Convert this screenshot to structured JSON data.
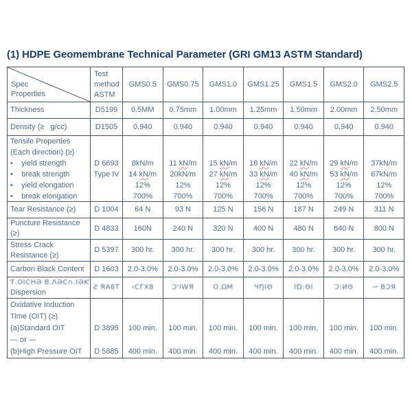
{
  "page": {
    "title": "(1) HDPE Geomembrane Technical Parameter (GRI GM13 ASTM Standard)"
  },
  "colors": {
    "title": "#1a3a5f",
    "table_text": "#4e6a84",
    "table_border": "#46586c",
    "spellcheck_underline": "#e08484",
    "background": "#ffffff"
  },
  "table": {
    "header": {
      "spec_label": "Spec",
      "properties_label": "Properties",
      "method_lines": [
        "Test",
        "method",
        "ASTM"
      ],
      "columns": [
        "GMS0.5",
        "GMS0.75",
        "GMS1.0",
        "GMS1.25",
        "GMS1.5",
        "GMS2.0",
        "GMS2.5"
      ]
    },
    "rows": [
      {
        "name": "thickness",
        "label": [
          "Thickness"
        ],
        "method": [
          "D5199"
        ],
        "values": [
          [
            "0.5MM"
          ],
          [
            "0.75mm"
          ],
          [
            "1.00mm"
          ],
          [
            "1.25mm"
          ],
          [
            "1.50mm"
          ],
          [
            "2.00mm"
          ],
          [
            "2.50mm"
          ]
        ]
      },
      {
        "name": "density",
        "label": [
          "Density (≥   g/cc)"
        ],
        "method": [
          "D1505"
        ],
        "values": [
          [
            "0.940"
          ],
          [
            "0.940"
          ],
          [
            "0.940"
          ],
          [
            "0.940"
          ],
          [
            "0.940"
          ],
          [
            "0.940"
          ],
          [
            "0.940"
          ]
        ]
      },
      {
        "name": "tensile",
        "label": [
          "Tensile Properties",
          "(Each direction) (≥)",
          "•    yield strength",
          "•    break strength",
          "•    yield elongation",
          "•    break elongation"
        ],
        "method": [
          "",
          "",
          "D 6693",
          "Type IV",
          "",
          ""
        ],
        "values": [
          [
            "",
            "",
            "8kN/m",
            "14 kN/m",
            "12%",
            "700%"
          ],
          [
            "",
            "",
            "11 kN/m",
            "20kN/m",
            "12%",
            "700%"
          ],
          [
            "",
            "",
            "15 kN/m",
            "27 kN/m",
            "12%",
            "700%"
          ],
          [
            "",
            "",
            "18 kN/m",
            "33 kN/m",
            "12%",
            "700%"
          ],
          [
            "",
            "",
            "22 kN/m",
            "40 kN/m",
            "12%",
            "700%"
          ],
          [
            "",
            "",
            "29 kN/m",
            "53 kN/m",
            "12%",
            "700%"
          ],
          [
            "",
            "",
            "37kN/m",
            "67kN/m",
            "12%",
            "700%"
          ]
        ]
      },
      {
        "name": "tear",
        "label": [
          "Tear Resistance (≥)"
        ],
        "method": [
          "D 1004"
        ],
        "values": [
          [
            "64 N"
          ],
          [
            "93 N"
          ],
          [
            "125 N"
          ],
          [
            "156 N"
          ],
          [
            "187 N"
          ],
          [
            "249 N"
          ],
          [
            "311 N"
          ]
        ]
      },
      {
        "name": "puncture",
        "label": [
          "Puncture Resistance",
          "(≥)"
        ],
        "method": [
          "D 4833"
        ],
        "values": [
          [
            "160N"
          ],
          [
            "240 N"
          ],
          [
            "320 N"
          ],
          [
            "400 N"
          ],
          [
            "480 N"
          ],
          [
            "640 N"
          ],
          [
            "800 N"
          ]
        ]
      },
      {
        "name": "stress_crack",
        "label": [
          "Stress Crack",
          "Resistance (≥)"
        ],
        "method": [
          "D 5397"
        ],
        "values": [
          [
            "300 hr."
          ],
          [
            "300 hr."
          ],
          [
            "300 hr."
          ],
          [
            "300 hr."
          ],
          [
            "300 hr."
          ],
          [
            "300 hr."
          ],
          [
            "300 hr."
          ]
        ]
      },
      {
        "name": "carbon_black_content",
        "label": [
          "Carbon Black Content"
        ],
        "method": [
          "D 1603"
        ],
        "values": [
          [
            "2.0-3.0%"
          ],
          [
            "2.0-3.0%"
          ],
          [
            "2.0-3.0%"
          ],
          [
            "2.0-3.0%"
          ],
          [
            "2.0-3.0%"
          ],
          [
            "2.0-3.0%"
          ],
          [
            "2.0-3.0%"
          ]
        ]
      },
      {
        "name": "dispersion",
        "garbled": true,
        "label": [
          "Ƭ.ΟΙϹΗƏ Β.ɅƏϹ∩.ΙƏƘ",
          "Dispersion"
        ],
        "method": [
          "Ƨ ЯΑ6Τ"
        ],
        "values": [
          [
            "‹ϹΓΧ8"
          ],
          [
            "Ɔ'IWЯ"
          ],
          [
            "Ο.ΩΜ"
          ],
          [
            "ЧŊΙΘ"
          ],
          [
            "ΙΏ:ΘΙ"
          ],
          [
            "Ɔ:ИΘ"
          ],
          [
            "⇀ ВƆЯ"
          ]
        ]
      },
      {
        "name": "oit",
        "label": [
          "Oxidative Induction",
          "Time (OIT) (≥)",
          "(a)Standard OIT",
          "— or —",
          "(b)High Pressure OIT"
        ],
        "method": [
          "",
          "",
          "D 3895",
          "",
          "D 5885"
        ],
        "values": [
          [
            "",
            "",
            "100 min.",
            "",
            "400 min."
          ],
          [
            "",
            "",
            "100 min.",
            "",
            "400 min."
          ],
          [
            "",
            "",
            "100 min.",
            "",
            "400 min."
          ],
          [
            "",
            "",
            "100 min.",
            "",
            "400 min."
          ],
          [
            "",
            "",
            "100 min.",
            "",
            "400 min."
          ],
          [
            "",
            "",
            "100 min.",
            "",
            "400 min."
          ],
          [
            "",
            "",
            "100 min.",
            "",
            "400 min."
          ]
        ]
      }
    ]
  }
}
